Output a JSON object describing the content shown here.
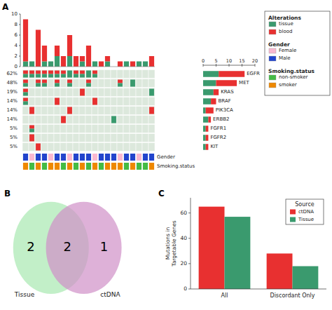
{
  "chart_data": [
    {
      "type": "bar",
      "title": "A",
      "stacked": true,
      "legend_title": "Alterations",
      "categories": [
        null,
        null,
        null,
        null,
        null,
        null,
        null,
        null,
        null,
        null,
        null,
        null,
        null,
        null,
        null,
        null,
        null,
        null,
        null,
        null,
        null
      ],
      "series": [
        {
          "name": "tissue",
          "color": "#3a9a6e",
          "values": [
            1,
            1,
            0,
            1,
            1,
            2,
            0,
            2,
            0,
            1,
            0,
            1,
            0,
            1,
            0,
            0,
            1,
            0,
            1,
            1,
            0
          ]
        },
        {
          "name": "blood",
          "color": "#e83030",
          "values": [
            8,
            0,
            7,
            3,
            0,
            2,
            2,
            4,
            2,
            1,
            4,
            0,
            1,
            1,
            0,
            1,
            0,
            1,
            0,
            0,
            2
          ]
        }
      ],
      "ylim": [
        0,
        10
      ],
      "yticks": [
        0,
        2,
        4,
        6,
        8,
        10
      ]
    },
    {
      "type": "heatmap",
      "color": "#dce8dc",
      "row_labels": [
        "62%",
        "48%",
        "19%",
        "14%",
        "14%",
        "14%",
        "5%",
        "5%",
        "5%"
      ],
      "cells": [
        [
          3,
          3,
          3,
          3,
          3,
          3,
          3,
          1,
          3,
          3,
          1,
          3,
          0,
          0,
          0,
          0,
          0,
          0,
          0,
          0,
          0
        ],
        [
          3,
          0,
          3,
          3,
          0,
          3,
          0,
          3,
          0,
          0,
          3,
          0,
          0,
          0,
          0,
          3,
          0,
          1,
          0,
          0,
          0
        ],
        [
          3,
          0,
          0,
          0,
          0,
          0,
          0,
          0,
          0,
          2,
          0,
          0,
          0,
          0,
          0,
          0,
          0,
          0,
          0,
          0,
          1
        ],
        [
          3,
          0,
          0,
          0,
          0,
          2,
          0,
          0,
          0,
          0,
          0,
          2,
          0,
          0,
          0,
          0,
          0,
          0,
          0,
          0,
          0
        ],
        [
          0,
          2,
          0,
          0,
          0,
          0,
          0,
          2,
          0,
          0,
          0,
          0,
          0,
          0,
          0,
          0,
          0,
          0,
          0,
          0,
          2
        ],
        [
          0,
          0,
          0,
          0,
          0,
          0,
          2,
          0,
          0,
          0,
          0,
          0,
          0,
          0,
          1,
          0,
          0,
          0,
          0,
          0,
          0
        ],
        [
          0,
          3,
          0,
          0,
          0,
          0,
          0,
          0,
          0,
          0,
          0,
          0,
          0,
          0,
          0,
          0,
          0,
          0,
          0,
          0,
          0
        ],
        [
          0,
          2,
          0,
          0,
          0,
          0,
          0,
          0,
          0,
          0,
          0,
          0,
          0,
          0,
          0,
          0,
          0,
          0,
          0,
          0,
          0
        ],
        [
          0,
          0,
          2,
          0,
          0,
          0,
          0,
          0,
          0,
          0,
          0,
          0,
          0,
          0,
          0,
          0,
          0,
          0,
          0,
          0,
          0
        ]
      ]
    },
    {
      "type": "tiles",
      "title": "Gender",
      "values": [
        "Male",
        "Female",
        "Male",
        "Male",
        "Female",
        "Male",
        "Male",
        "Female",
        "Male",
        "Male",
        "Male",
        "Female",
        "Male",
        "Male",
        "Male",
        "Female",
        "Male",
        "Male",
        "Female",
        "Male",
        "Male"
      ],
      "series": [
        {
          "name": "Female",
          "color": "#f9b8d0"
        },
        {
          "name": "Male",
          "color": "#2244cc"
        }
      ]
    },
    {
      "type": "tiles",
      "title": "Smoking.status",
      "values": [
        "smoker",
        "non-smoker",
        "smoker",
        "non-smoker",
        "smoker",
        "smoker",
        "non-smoker",
        "smoker",
        "non-smoker",
        "smoker",
        "non-smoker",
        "smoker",
        "non-smoker",
        "smoker",
        "smoker",
        "smoker",
        "non-smoker",
        "smoker",
        "non-smoker",
        "non-smoker",
        "smoker"
      ],
      "series": [
        {
          "name": "non-smoker",
          "color": "#44bb44"
        },
        {
          "name": "smoker",
          "color": "#ee8800"
        }
      ]
    },
    {
      "type": "bar",
      "orientation": "horizontal",
      "stacked": true,
      "categories": [
        "EGFR",
        "MET",
        "KRAS",
        "BRAF",
        "PIK3CA",
        "ERBB2",
        "FGFR1",
        "FGFR2",
        "KIT"
      ],
      "series": [
        {
          "color": "#3a9a6e",
          "values": [
            6,
            5,
            4,
            3,
            1,
            2,
            1,
            1,
            1
          ]
        },
        {
          "color": "#e83030",
          "values": [
            10,
            8,
            2,
            2,
            3,
            1,
            1,
            1,
            1
          ]
        }
      ],
      "xlim": [
        0,
        20
      ],
      "xticks": [
        0,
        5,
        10,
        15,
        20
      ]
    },
    {
      "type": "venn",
      "title": "B",
      "sets": [
        "Tissue",
        "ctDNA"
      ],
      "colors": [
        "#a8e8b0",
        "#d090c8"
      ],
      "values": [
        2,
        2,
        1
      ],
      "data_labels": true
    },
    {
      "type": "bar",
      "title": "C",
      "categories": [
        "All",
        "Discordant Only"
      ],
      "series": [
        {
          "name": "ctDNA",
          "color": "#e83030",
          "values": [
            65,
            28
          ]
        },
        {
          "name": "Tissue",
          "color": "#3a9a6e",
          "values": [
            57,
            18
          ]
        }
      ],
      "ylabel": "Mutations in\nTargetable Genes",
      "ylim": [
        0,
        72
      ],
      "yticks": [
        0,
        20,
        40,
        60
      ],
      "legend": "upper right",
      "legend_title": "Source"
    }
  ]
}
